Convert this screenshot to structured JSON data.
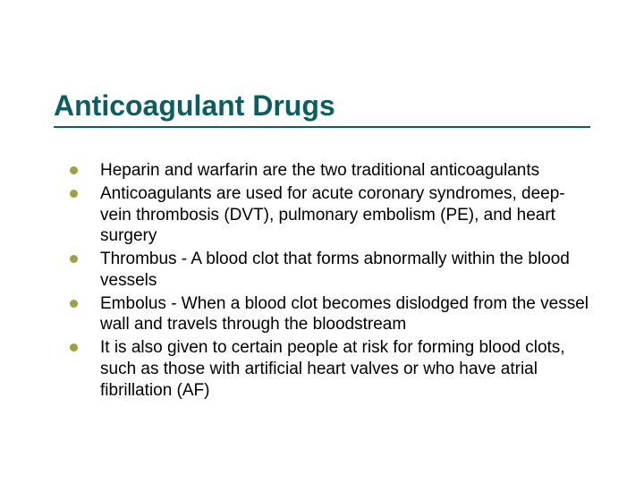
{
  "slide": {
    "title": "Anticoagulant Drugs",
    "title_color": "#0d5f5f",
    "title_fontsize": 32,
    "underline_color": "#0d5f5f",
    "background_color": "#ffffff",
    "bullet_color": "#9fa040",
    "body_text_color": "#000000",
    "body_fontsize": 19,
    "bullets": [
      "Heparin and warfarin are the two traditional anticoagulants",
      "Anticoagulants are used for acute coronary syndromes, deep-vein thrombosis (DVT), pulmonary embolism (PE), and heart surgery",
      "Thrombus - A blood clot that forms abnormally within the blood vessels",
      "Embolus - When a blood clot becomes dislodged from the vessel wall and travels through the bloodstream",
      "It is also given to certain people at risk for forming blood clots, such as those with artificial heart valves or who have atrial fibrillation (AF)"
    ]
  }
}
